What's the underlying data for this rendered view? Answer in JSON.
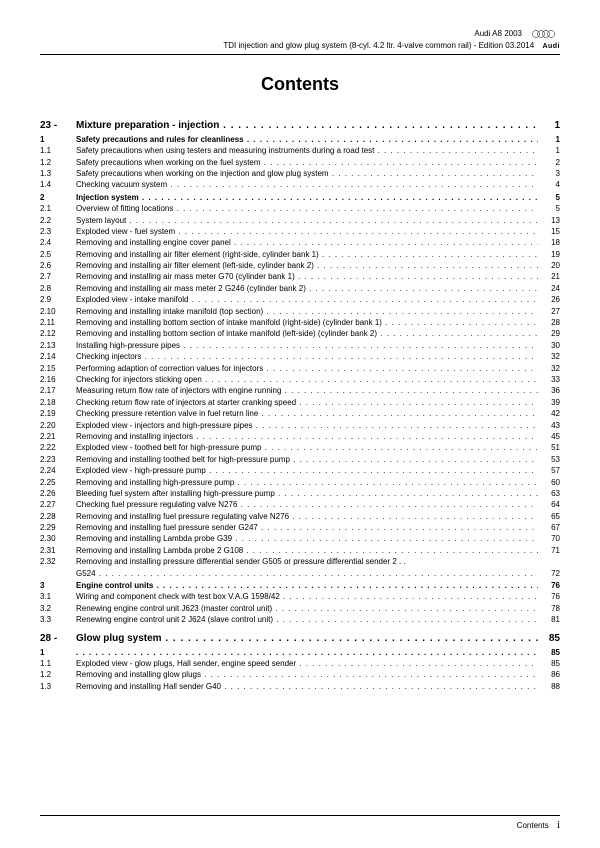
{
  "header": {
    "model": "Audi A8 2003",
    "subtitle": "TDI injection and glow plug system (8-cyl. 4.2 ltr. 4-valve common rail) - Edition 03.2014",
    "logo_text": "Audi"
  },
  "title": "Contents",
  "toc": [
    {
      "level": "chapter",
      "num": "23 -",
      "label": "Mixture preparation - injection",
      "page": "1"
    },
    {
      "level": "section",
      "num": "1",
      "label": "Safety precautions and rules for cleanliness",
      "page": "1"
    },
    {
      "level": "item",
      "num": "1.1",
      "label": "Safety precautions when using testers and measuring instruments during a road test",
      "page": "1"
    },
    {
      "level": "item",
      "num": "1.2",
      "label": "Safety precautions when working on the fuel system",
      "page": "2"
    },
    {
      "level": "item",
      "num": "1.3",
      "label": "Safety precautions when working on the injection and glow plug system",
      "page": "3"
    },
    {
      "level": "item",
      "num": "1.4",
      "label": "Checking vacuum system",
      "page": "4"
    },
    {
      "level": "section",
      "num": "2",
      "label": "Injection system",
      "page": "5"
    },
    {
      "level": "item",
      "num": "2.1",
      "label": "Overview of fitting locations",
      "page": "5"
    },
    {
      "level": "item",
      "num": "2.2",
      "label": "System layout",
      "page": "13"
    },
    {
      "level": "item",
      "num": "2.3",
      "label": "Exploded view - fuel system",
      "page": "15"
    },
    {
      "level": "item",
      "num": "2.4",
      "label": "Removing and installing engine cover panel",
      "page": "18"
    },
    {
      "level": "item",
      "num": "2.5",
      "label": "Removing and installing air filter element (right-side, cylinder bank 1)",
      "page": "19"
    },
    {
      "level": "item",
      "num": "2.6",
      "label": "Removing and installing air filter element (left-side, cylinder bank 2)",
      "page": "20"
    },
    {
      "level": "item",
      "num": "2.7",
      "label": "Removing and installing air mass meter G70 (cylinder bank 1)",
      "page": "21"
    },
    {
      "level": "item",
      "num": "2.8",
      "label": "Removing and installing air mass meter 2 G246 (cylinder bank 2)",
      "page": "24"
    },
    {
      "level": "item",
      "num": "2.9",
      "label": "Exploded view - intake manifold",
      "page": "26"
    },
    {
      "level": "item",
      "num": "2.10",
      "label": "Removing and installing intake manifold (top section)",
      "page": "27"
    },
    {
      "level": "item",
      "num": "2.11",
      "label": "Removing and installing bottom section of intake manifold (right-side) (cylinder bank 1)",
      "page": "28"
    },
    {
      "level": "item",
      "num": "2.12",
      "label": "Removing and installing bottom section of intake manifold (left-side) (cylinder bank 2)",
      "page": "29"
    },
    {
      "level": "item",
      "num": "2.13",
      "label": "Installing high-pressure pipes",
      "page": "30"
    },
    {
      "level": "item",
      "num": "2.14",
      "label": "Checking injectors",
      "page": "32"
    },
    {
      "level": "item",
      "num": "2.15",
      "label": "Performing adaption of correction values for injectors",
      "page": "32"
    },
    {
      "level": "item",
      "num": "2.16",
      "label": "Checking for injectors sticking open",
      "page": "33"
    },
    {
      "level": "item",
      "num": "2.17",
      "label": "Measuring return flow rate of injectors with engine running",
      "page": "36"
    },
    {
      "level": "item",
      "num": "2.18",
      "label": "Checking return flow rate of injectors at starter cranking speed",
      "page": "39"
    },
    {
      "level": "item",
      "num": "2.19",
      "label": "Checking pressure retention valve in fuel return line",
      "page": "42"
    },
    {
      "level": "item",
      "num": "2.20",
      "label": "Exploded view - injectors and high-pressure pipes",
      "page": "43"
    },
    {
      "level": "item",
      "num": "2.21",
      "label": "Removing and installing injectors",
      "page": "45"
    },
    {
      "level": "item",
      "num": "2.22",
      "label": "Exploded view - toothed belt for high-pressure pump",
      "page": "51"
    },
    {
      "level": "item",
      "num": "2.23",
      "label": "Removing and installing toothed belt for high-pressure pump",
      "page": "53"
    },
    {
      "level": "item",
      "num": "2.24",
      "label": "Exploded view - high-pressure pump",
      "page": "57"
    },
    {
      "level": "item",
      "num": "2.25",
      "label": "Removing and installing high-pressure pump",
      "page": "60"
    },
    {
      "level": "item",
      "num": "2.26",
      "label": "Bleeding fuel system after installing high-pressure pump",
      "page": "63"
    },
    {
      "level": "item",
      "num": "2.27",
      "label": "Checking fuel pressure regulating valve N276",
      "page": "64"
    },
    {
      "level": "item",
      "num": "2.28",
      "label": "Removing and installing fuel pressure regulating valve N276",
      "page": "65"
    },
    {
      "level": "item",
      "num": "2.29",
      "label": "Removing and installing fuel pressure sender G247",
      "page": "67"
    },
    {
      "level": "item",
      "num": "2.30",
      "label": "Removing and installing Lambda probe G39",
      "page": "70"
    },
    {
      "level": "item",
      "num": "2.31",
      "label": "Removing and installing Lambda probe 2 G108",
      "page": "71"
    },
    {
      "level": "item-wrap",
      "num": "2.32",
      "label": "Removing and installing pressure differential sender G505 or pressure differential sender 2 G524",
      "page": "72"
    },
    {
      "level": "section",
      "num": "3",
      "label": "Engine control units",
      "page": "76"
    },
    {
      "level": "item",
      "num": "3.1",
      "label": "Wiring and component check with test box V.A.G 1598/42",
      "page": "76"
    },
    {
      "level": "item",
      "num": "3.2",
      "label": "Renewing engine control unit J623 (master control unit)",
      "page": "78"
    },
    {
      "level": "item",
      "num": "3.3",
      "label": "Renewing engine control unit 2 J624 (slave control unit)",
      "page": "81"
    },
    {
      "level": "chapter",
      "num": "28 -",
      "label": "Glow plug system",
      "page": "85"
    },
    {
      "level": "section",
      "num": "1",
      "label": "",
      "page": "85"
    },
    {
      "level": "item",
      "num": "1.1",
      "label": "Exploded view - glow plugs, Hall sender, engine speed sender",
      "page": "85"
    },
    {
      "level": "item",
      "num": "1.2",
      "label": "Removing and installing glow plugs",
      "page": "86"
    },
    {
      "level": "item",
      "num": "1.3",
      "label": "Removing and installing Hall sender G40",
      "page": "88"
    }
  ],
  "footer": {
    "label": "Contents",
    "page": "i"
  }
}
